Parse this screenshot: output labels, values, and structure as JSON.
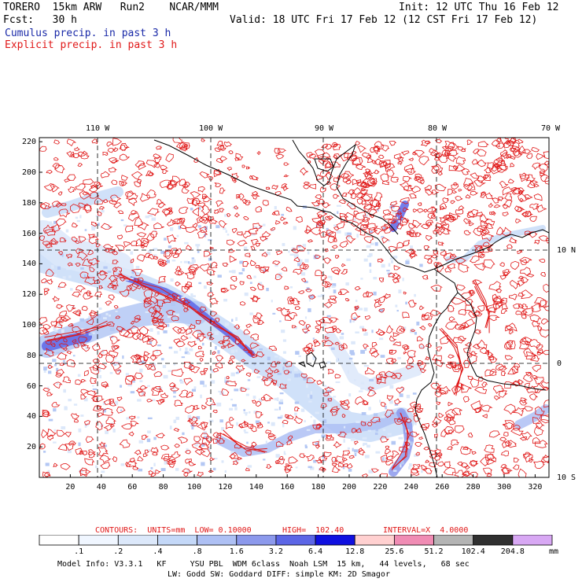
{
  "header": {
    "model_line": "TORERO  15km ARW   Run2    NCAR/MMM",
    "init": "Init: 12 UTC Thu 16 Feb 12",
    "fcst_line": "Fcst:   30 h",
    "valid": "Valid: 18 UTC Fri 17 Feb 12 (12 CST Fri 17 Feb 12)",
    "legend_cumulus": "Cumulus precip. in past 3 h",
    "legend_explicit": "Explicit precip. in past 3 h"
  },
  "colors": {
    "cumulus_text": "#1a2aa8",
    "explicit_text": "#e01818",
    "contour": "#e01818",
    "coastline": "#000000"
  },
  "map": {
    "top_lon_labels": [
      "110 W",
      "100 W",
      "90 W",
      "80 W",
      "70 W"
    ],
    "right_lat_labels": [
      "10 N",
      "0",
      "10 S"
    ],
    "y_ticks": [
      "220",
      "200",
      "180",
      "160",
      "140",
      "120",
      "100",
      "80",
      "60",
      "40",
      "20"
    ],
    "x_ticks": [
      "20",
      "40",
      "60",
      "80",
      "100",
      "120",
      "140",
      "160",
      "180",
      "200",
      "220",
      "240",
      "260",
      "280",
      "300",
      "320"
    ]
  },
  "contours_info": {
    "label": "CONTOURS:  UNITS=mm  LOW= 0.10000",
    "high": "HIGH=  102.40",
    "interval": "INTERVAL=X  4.0000"
  },
  "colorbar": {
    "unit": "mm",
    "labels": [
      ".1",
      ".2",
      ".4",
      ".8",
      "1.6",
      "3.2",
      "6.4",
      "12.8",
      "25.6",
      "51.2",
      "102.4",
      "204.8"
    ],
    "colors": [
      "#ffffff",
      "#f0f6ff",
      "#dce8fa",
      "#c4d8f8",
      "#aec0f4",
      "#8c99ec",
      "#5c66e6",
      "#1010e0",
      "#ffd0d0",
      "#f08cb4",
      "#b4b4b4",
      "#303030",
      "#d8a8f4"
    ]
  },
  "footer": {
    "line1": "Model Info: V3.3.1   KF     YSU PBL  WDM 6class  Noah LSM  15 km,   44 levels,   68 sec",
    "line2": "LW: Godd SW: Goddard DIFF: simple KM: 2D Smagor"
  }
}
